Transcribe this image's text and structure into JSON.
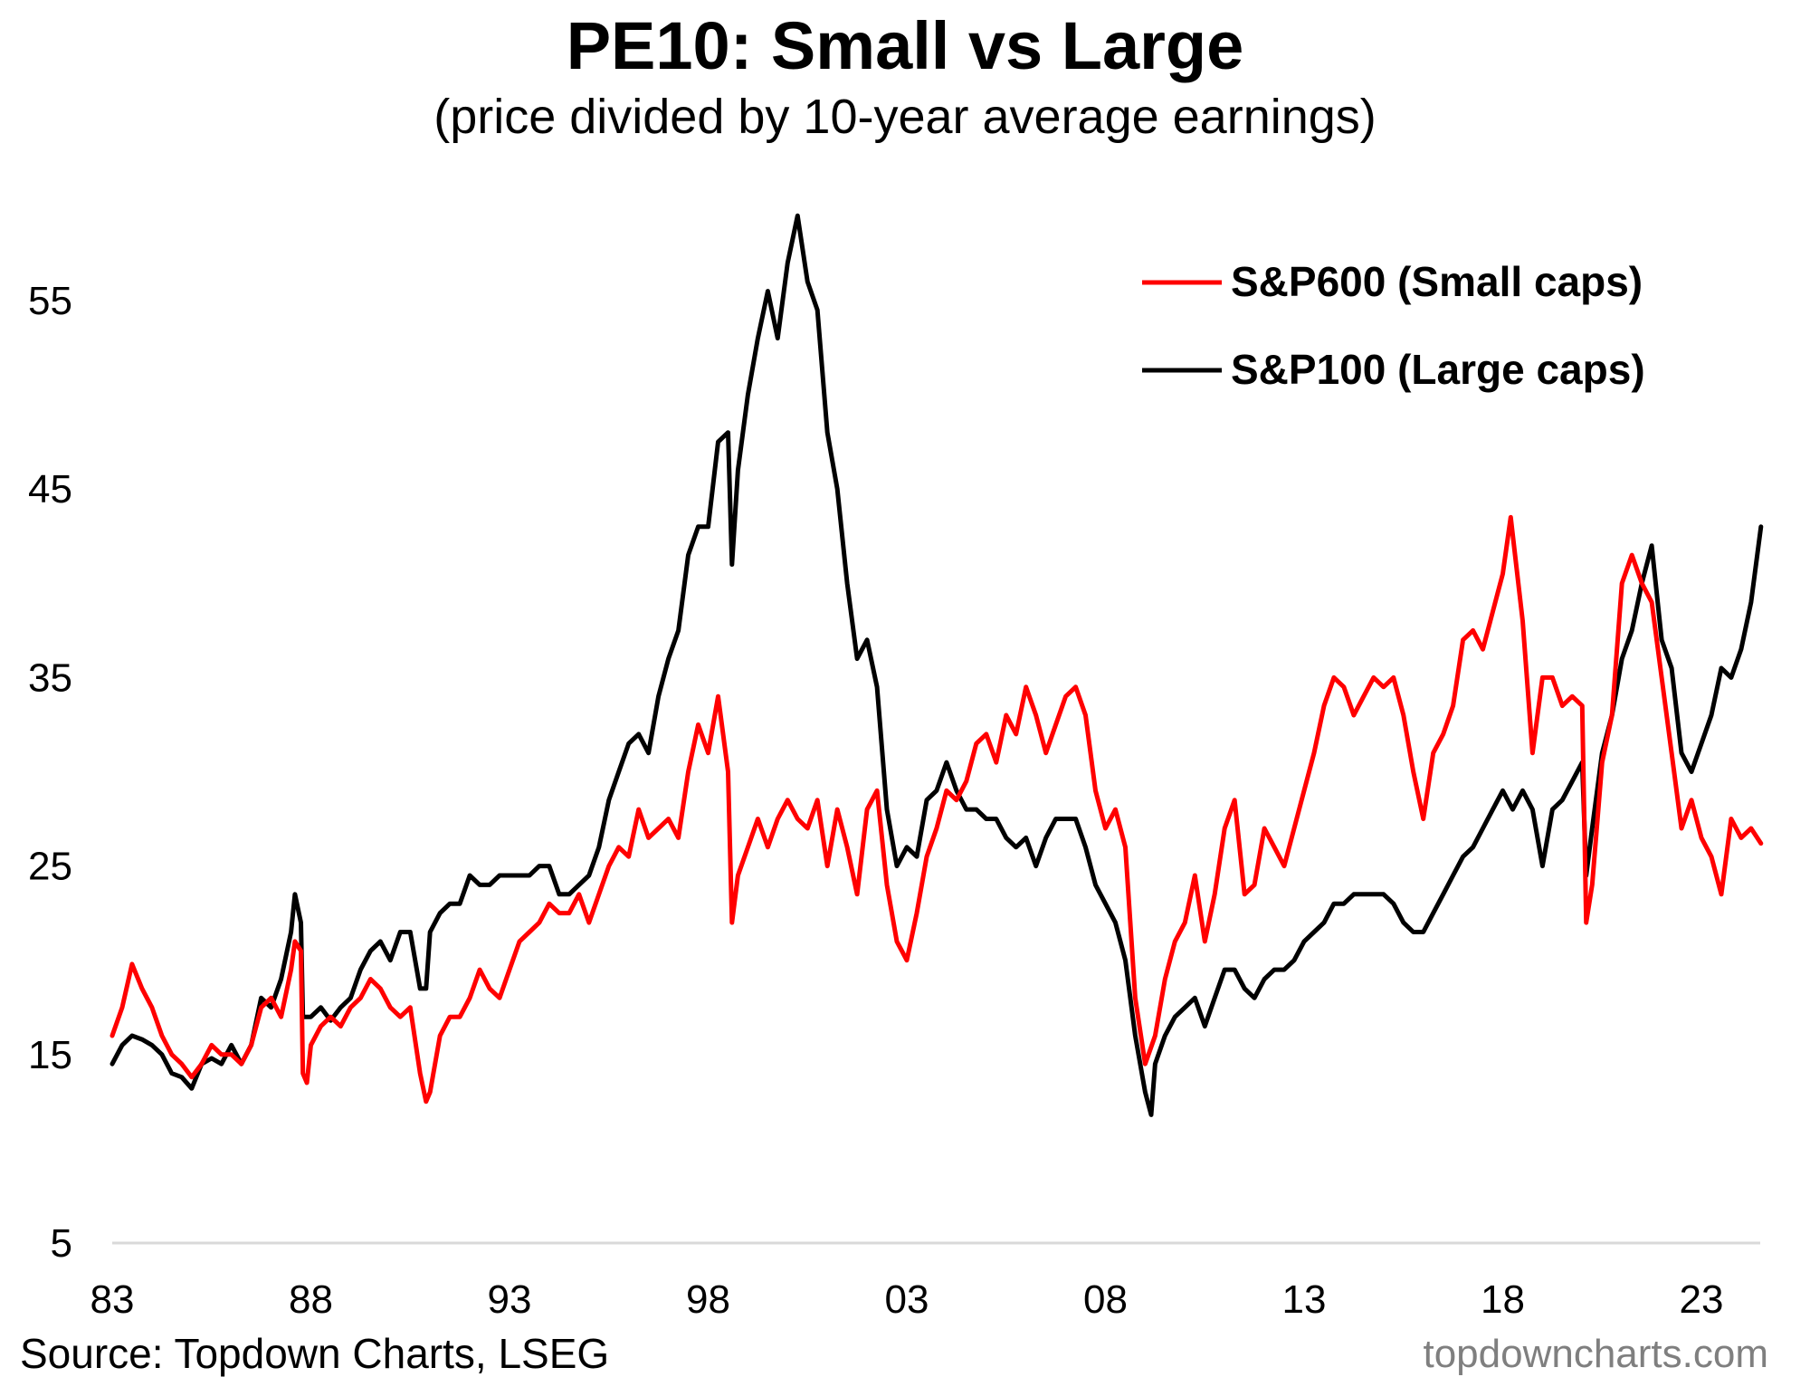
{
  "header": {
    "title": "PE10: Small vs Large",
    "subtitle": "(price divided by 10-year average earnings)"
  },
  "footer": {
    "source": "Source: Topdown Charts, LSEG",
    "watermark": "topdowncharts.com"
  },
  "chart_data": {
    "type": "line",
    "title": "PE10: Small vs Large",
    "subtitle": "(price divided by 10-year average earnings)",
    "xlabel": "",
    "ylabel": "",
    "xlim": [
      1983,
      2024.6
    ],
    "ylim": [
      5,
      60
    ],
    "x_ticks": [
      1983,
      1988,
      1993,
      1998,
      2003,
      2008,
      2013,
      2018,
      2023
    ],
    "x_tick_labels": [
      "83",
      "88",
      "93",
      "98",
      "03",
      "08",
      "13",
      "18",
      "23"
    ],
    "y_ticks": [
      5,
      15,
      25,
      35,
      45,
      55
    ],
    "y_tick_labels": [
      "5",
      "15",
      "25",
      "35",
      "45",
      "55"
    ],
    "grid": false,
    "legend": {
      "position": "top-right"
    },
    "series": [
      {
        "name": "S&P600 (Small caps)",
        "color": "#ff0000",
        "x": [
          1983.0,
          1983.25,
          1983.5,
          1983.75,
          1984.0,
          1984.25,
          1984.5,
          1984.75,
          1985.0,
          1985.25,
          1985.5,
          1985.75,
          1986.0,
          1986.25,
          1986.5,
          1986.75,
          1987.0,
          1987.25,
          1987.5,
          1987.6,
          1987.75,
          1987.8,
          1987.9,
          1988.0,
          1988.25,
          1988.5,
          1988.75,
          1989.0,
          1989.25,
          1989.5,
          1989.75,
          1990.0,
          1990.25,
          1990.5,
          1990.75,
          1990.9,
          1991.0,
          1991.25,
          1991.5,
          1991.75,
          1992.0,
          1992.25,
          1992.5,
          1992.75,
          1993.0,
          1993.25,
          1993.5,
          1993.75,
          1994.0,
          1994.25,
          1994.5,
          1994.75,
          1995.0,
          1995.25,
          1995.5,
          1995.75,
          1996.0,
          1996.25,
          1996.5,
          1996.75,
          1997.0,
          1997.25,
          1997.5,
          1997.75,
          1998.0,
          1998.25,
          1998.5,
          1998.6,
          1998.75,
          1999.0,
          1999.25,
          1999.5,
          1999.75,
          2000.0,
          2000.25,
          2000.5,
          2000.75,
          2001.0,
          2001.25,
          2001.5,
          2001.75,
          2002.0,
          2002.25,
          2002.5,
          2002.75,
          2003.0,
          2003.25,
          2003.5,
          2003.75,
          2004.0,
          2004.25,
          2004.5,
          2004.75,
          2005.0,
          2005.25,
          2005.5,
          2005.75,
          2006.0,
          2006.25,
          2006.5,
          2006.75,
          2007.0,
          2007.25,
          2007.5,
          2007.75,
          2008.0,
          2008.25,
          2008.5,
          2008.75,
          2009.0,
          2009.25,
          2009.5,
          2009.75,
          2010.0,
          2010.25,
          2010.5,
          2010.75,
          2011.0,
          2011.25,
          2011.5,
          2011.75,
          2012.0,
          2012.25,
          2012.5,
          2012.75,
          2013.0,
          2013.25,
          2013.5,
          2013.75,
          2014.0,
          2014.25,
          2014.5,
          2014.75,
          2015.0,
          2015.25,
          2015.5,
          2015.75,
          2016.0,
          2016.25,
          2016.5,
          2016.75,
          2017.0,
          2017.25,
          2017.5,
          2017.75,
          2018.0,
          2018.2,
          2018.5,
          2018.75,
          2019.0,
          2019.25,
          2019.5,
          2019.75,
          2020.0,
          2020.1,
          2020.25,
          2020.5,
          2020.75,
          2021.0,
          2021.25,
          2021.5,
          2021.75,
          2022.0,
          2022.25,
          2022.5,
          2022.75,
          2023.0,
          2023.25,
          2023.5,
          2023.75,
          2024.0,
          2024.25,
          2024.5
        ],
        "values": [
          16,
          17.5,
          19.8,
          18.5,
          17.5,
          16,
          15,
          14.5,
          13.8,
          14.5,
          15.5,
          15,
          15,
          14.5,
          15.5,
          17.5,
          18,
          17,
          19.5,
          21,
          20.5,
          14,
          13.5,
          15.5,
          16.5,
          17,
          16.5,
          17.5,
          18,
          19,
          18.5,
          17.5,
          17,
          17.5,
          14,
          12.5,
          13,
          16,
          17,
          17,
          18,
          19.5,
          18.5,
          18,
          19.5,
          21,
          21.5,
          22,
          23,
          22.5,
          22.5,
          23.5,
          22,
          23.5,
          25,
          26,
          25.5,
          28,
          26.5,
          27,
          27.5,
          26.5,
          30,
          32.5,
          31,
          34,
          30,
          22,
          24.5,
          26,
          27.5,
          26,
          27.5,
          28.5,
          27.5,
          27,
          28.5,
          25,
          28,
          26,
          23.5,
          28,
          29,
          24,
          21,
          20,
          22.5,
          25.5,
          27,
          29,
          28.5,
          29.5,
          31.5,
          32,
          30.5,
          33,
          32,
          34.5,
          33,
          31,
          32.5,
          34,
          34.5,
          33,
          29,
          27,
          28,
          26,
          18,
          14.5,
          16,
          19,
          21,
          22,
          24.5,
          21,
          23.5,
          27,
          28.5,
          23.5,
          24,
          27,
          26,
          25,
          27,
          29,
          31,
          33.5,
          35,
          34.5,
          33,
          34,
          35,
          34.5,
          35,
          33,
          30,
          27.5,
          31,
          32,
          33.5,
          37,
          37.5,
          36.5,
          38.5,
          40.5,
          43.5,
          38,
          31,
          35,
          35,
          33.5,
          34,
          33.5,
          22,
          24,
          30.5,
          33,
          40,
          41.5,
          40,
          39,
          35,
          31,
          27,
          28.5,
          26.5,
          25.5,
          23.5,
          27.5,
          26.5,
          27,
          26.2
        ]
      },
      {
        "name": "S&P100 (Large caps)",
        "color": "#000000",
        "x": [
          1983.0,
          1983.25,
          1983.5,
          1983.75,
          1984.0,
          1984.25,
          1984.5,
          1984.75,
          1985.0,
          1985.25,
          1985.5,
          1985.75,
          1986.0,
          1986.25,
          1986.5,
          1986.75,
          1987.0,
          1987.25,
          1987.5,
          1987.6,
          1987.75,
          1987.8,
          1987.9,
          1988.0,
          1988.25,
          1988.5,
          1988.75,
          1989.0,
          1989.25,
          1989.5,
          1989.75,
          1990.0,
          1990.25,
          1990.5,
          1990.75,
          1990.9,
          1991.0,
          1991.25,
          1991.5,
          1991.75,
          1992.0,
          1992.25,
          1992.5,
          1992.75,
          1993.0,
          1993.25,
          1993.5,
          1993.75,
          1994.0,
          1994.25,
          1994.5,
          1994.75,
          1995.0,
          1995.25,
          1995.5,
          1995.75,
          1996.0,
          1996.25,
          1996.5,
          1996.75,
          1997.0,
          1997.25,
          1997.5,
          1997.75,
          1998.0,
          1998.25,
          1998.5,
          1998.6,
          1998.75,
          1999.0,
          1999.25,
          1999.5,
          1999.75,
          2000.0,
          2000.25,
          2000.5,
          2000.75,
          2001.0,
          2001.25,
          2001.5,
          2001.75,
          2002.0,
          2002.25,
          2002.5,
          2002.75,
          2003.0,
          2003.25,
          2003.5,
          2003.75,
          2004.0,
          2004.25,
          2004.5,
          2004.75,
          2005.0,
          2005.25,
          2005.5,
          2005.75,
          2006.0,
          2006.25,
          2006.5,
          2006.75,
          2007.0,
          2007.25,
          2007.5,
          2007.75,
          2008.0,
          2008.25,
          2008.5,
          2008.75,
          2009.0,
          2009.15,
          2009.25,
          2009.5,
          2009.75,
          2010.0,
          2010.25,
          2010.5,
          2010.75,
          2011.0,
          2011.25,
          2011.5,
          2011.75,
          2012.0,
          2012.25,
          2012.5,
          2012.75,
          2013.0,
          2013.25,
          2013.5,
          2013.75,
          2014.0,
          2014.25,
          2014.5,
          2014.75,
          2015.0,
          2015.25,
          2015.5,
          2015.75,
          2016.0,
          2016.25,
          2016.5,
          2016.75,
          2017.0,
          2017.25,
          2017.5,
          2017.75,
          2018.0,
          2018.25,
          2018.5,
          2018.75,
          2019.0,
          2019.25,
          2019.5,
          2019.75,
          2020.0,
          2020.1,
          2020.25,
          2020.5,
          2020.75,
          2021.0,
          2021.25,
          2021.5,
          2021.75,
          2022.0,
          2022.25,
          2022.5,
          2022.75,
          2023.0,
          2023.25,
          2023.5,
          2023.75,
          2024.0,
          2024.25,
          2024.5
        ],
        "values": [
          14.5,
          15.5,
          16,
          15.8,
          15.5,
          15,
          14,
          13.8,
          13.2,
          14.5,
          14.8,
          14.5,
          15.5,
          14.5,
          15.5,
          18,
          17.5,
          19,
          21.5,
          23.5,
          22,
          17,
          17,
          17,
          17.5,
          16.8,
          17.5,
          18,
          19.5,
          20.5,
          21,
          20,
          21.5,
          21.5,
          18.5,
          18.5,
          21.5,
          22.5,
          23,
          23,
          24.5,
          24,
          24,
          24.5,
          24.5,
          24.5,
          24.5,
          25,
          25,
          23.5,
          23.5,
          24,
          24.5,
          26,
          28.5,
          30,
          31.5,
          32,
          31,
          34,
          36,
          37.5,
          41.5,
          43,
          43,
          47.5,
          48,
          41,
          46,
          50,
          53,
          55.5,
          53,
          57,
          59.5,
          56,
          54.5,
          48,
          45,
          40,
          36,
          37,
          34.5,
          28,
          25,
          26,
          25.5,
          28.5,
          29,
          30.5,
          29,
          28,
          28,
          27.5,
          27.5,
          26.5,
          26,
          26.5,
          25,
          26.5,
          27.5,
          27.5,
          27.5,
          26,
          24,
          23,
          22,
          20,
          16,
          13,
          11.8,
          14.5,
          16,
          17,
          17.5,
          18,
          16.5,
          18,
          19.5,
          19.5,
          18.5,
          18,
          19,
          19.5,
          19.5,
          20,
          21,
          21.5,
          22,
          23,
          23,
          23.5,
          23.5,
          23.5,
          23.5,
          23,
          22,
          21.5,
          21.5,
          22.5,
          23.5,
          24.5,
          25.5,
          26,
          27,
          28,
          29,
          28,
          29,
          28,
          25,
          28,
          28.5,
          29.5,
          30.5,
          24.5,
          27,
          31,
          33,
          36,
          37.5,
          40,
          42,
          37,
          35.5,
          31,
          30,
          31.5,
          33,
          35.5,
          35,
          36.5,
          39,
          43
        ]
      }
    ]
  }
}
